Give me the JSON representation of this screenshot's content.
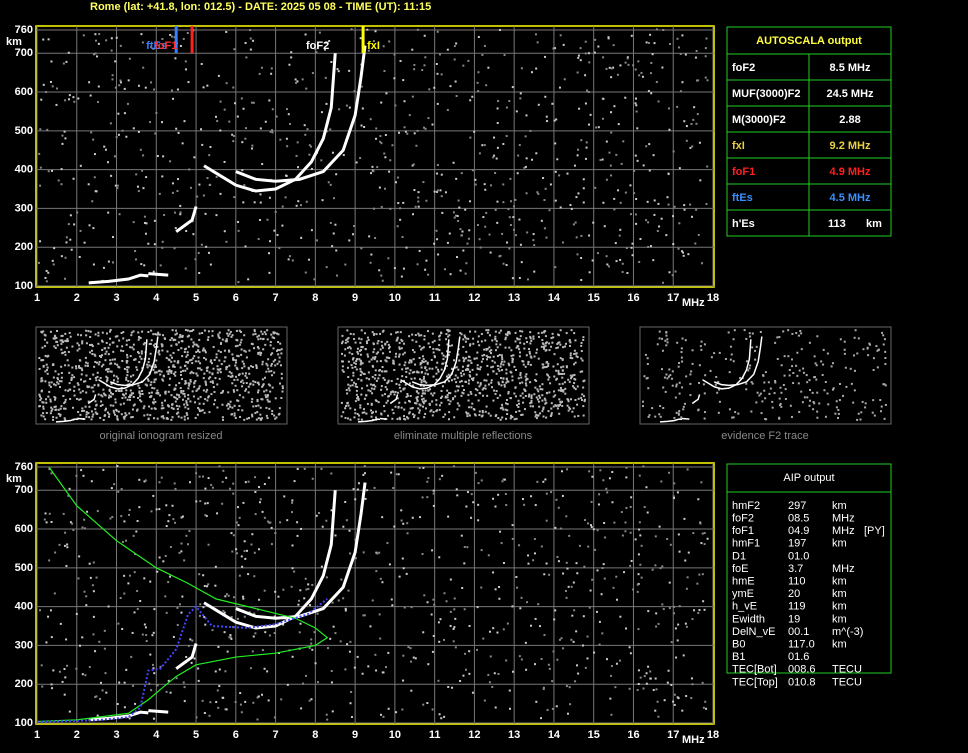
{
  "header": {
    "title": "Rome (lat: +41.8, lon: 012.5) - DATE: 2025 05 08 - TIME (UT): 11:15"
  },
  "axes": {
    "yticks": [
      760,
      700,
      600,
      500,
      400,
      300,
      200,
      100
    ],
    "xticks": [
      1,
      2,
      3,
      4,
      5,
      6,
      7,
      8,
      9,
      10,
      11,
      12,
      13,
      14,
      15,
      16,
      17,
      18
    ],
    "y_unit": "km",
    "x_unit": "MHz"
  },
  "markers": {
    "ftEs": "ftEs",
    "foF1": "foF1",
    "foF2": "foF2",
    "fxI": "fxI"
  },
  "autoscala": {
    "title": "AUTOSCALA output",
    "rows": [
      [
        "foF2",
        "8.5 MHz"
      ],
      [
        "MUF(3000)F2",
        "24.5 MHz"
      ],
      [
        "M(3000)F2",
        "2.88"
      ],
      [
        "fxI",
        "9.2 MHz"
      ],
      [
        "foF1",
        "4.9 MHz"
      ],
      [
        "ftEs",
        "4.5 MHz"
      ],
      [
        "h'Es",
        "113",
        "km"
      ]
    ]
  },
  "thumbnails": [
    "original ionogram resized",
    "eliminate multiple reflections",
    "evidence F2 trace"
  ],
  "aip": {
    "title": "AIP output",
    "rows": [
      [
        "hmF2",
        "297",
        "km"
      ],
      [
        "foF2",
        "08.5",
        "MHz"
      ],
      [
        "foF1",
        "04.9",
        "MHz",
        "[PY]"
      ],
      [
        "hmF1",
        "197",
        "km"
      ],
      [
        "D1",
        "01.0"
      ],
      [
        "foE",
        "3.7",
        "MHz"
      ],
      [
        "hmE",
        "110",
        "km"
      ],
      [
        "ymE",
        "20",
        "km"
      ],
      [
        "h_vE",
        "119",
        "km"
      ],
      [
        "Ewidth",
        "19",
        "km"
      ],
      [
        "DelN_vE",
        "00.1",
        "m^(-3)"
      ],
      [
        "B0",
        "117.0",
        "km"
      ],
      [
        "B1",
        "01.6"
      ],
      [
        "TEC[Bot]",
        "008.6",
        "TECU"
      ],
      [
        "TEC[Top]",
        "010.8",
        "TECU"
      ]
    ]
  }
}
